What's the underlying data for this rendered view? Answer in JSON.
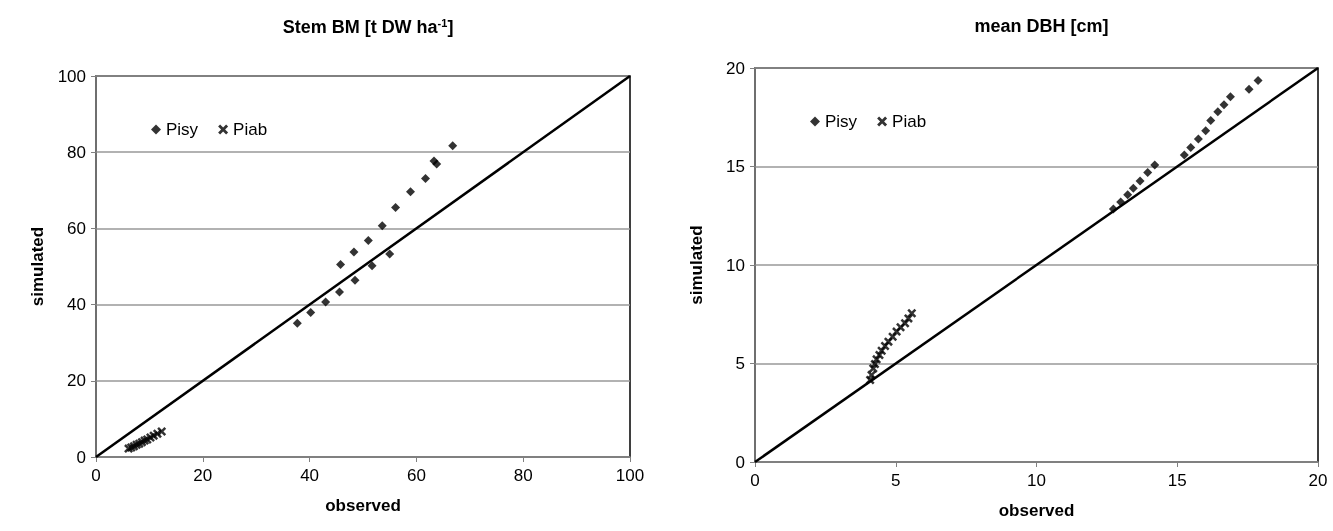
{
  "chart_data": [
    {
      "type": "scatter",
      "title": "Stem BM [t DW ha$^{-1}$]",
      "xlabel": "observed",
      "ylabel": "simulated",
      "xlim": [
        0,
        100
      ],
      "xticks": [
        0,
        20,
        40,
        60,
        80,
        100
      ],
      "ylim": [
        0,
        100
      ],
      "yticks": [
        0,
        20,
        40,
        60,
        80,
        100
      ],
      "grid": "y",
      "legend": "top left",
      "series": [
        {
          "name": "Pisy",
          "color": "#000000",
          "marker": "diamond",
          "x": [
            37.7,
            40.2,
            43.0,
            45.6,
            45.8,
            48.5,
            48.3,
            51.0,
            51.7,
            53.6,
            55.0,
            56.1,
            58.9,
            61.7,
            63.3,
            63.8,
            66.8
          ],
          "values": [
            35.1,
            37.9,
            40.7,
            43.3,
            50.5,
            46.4,
            53.8,
            56.8,
            50.2,
            60.7,
            53.3,
            65.5,
            69.6,
            73.1,
            77.7,
            76.9,
            81.7
          ]
        },
        {
          "name": "Piab",
          "color": "#000000",
          "marker": "cross",
          "x": [
            6.1,
            6.6,
            7.1,
            7.6,
            8.1,
            8.6,
            9.1,
            9.6,
            10.2,
            10.8,
            11.5,
            12.3
          ],
          "values": [
            2.2,
            2.5,
            2.8,
            3.2,
            3.5,
            3.9,
            4.3,
            4.6,
            5.1,
            5.6,
            6.1,
            6.7
          ]
        },
        {
          "type": "line",
          "color": "#000000",
          "marker": "none",
          "line_style": "solid",
          "x": [
            0,
            100
          ],
          "values": [
            0,
            100
          ]
        }
      ]
    },
    {
      "type": "scatter",
      "title": "mean DBH [cm]",
      "xlabel": "observed",
      "ylabel": "simulated",
      "xlim": [
        0,
        20
      ],
      "xticks": [
        0,
        5,
        10,
        15,
        20
      ],
      "ylim": [
        0,
        20
      ],
      "yticks": [
        0,
        5,
        10,
        15,
        20
      ],
      "grid": "y",
      "legend": "top left",
      "series": [
        {
          "name": "Pisy",
          "color": "#000000",
          "marker": "diamond",
          "x": [
            12.73,
            12.99,
            13.24,
            13.44,
            13.68,
            13.95,
            14.2,
            15.25,
            15.48,
            15.75,
            16.01,
            16.19,
            16.44,
            16.66,
            16.89,
            17.55,
            17.87
          ],
          "values": [
            12.84,
            13.2,
            13.57,
            13.9,
            14.26,
            14.7,
            15.08,
            15.58,
            15.97,
            16.4,
            16.82,
            17.33,
            17.78,
            18.14,
            18.54,
            18.92,
            19.36
          ]
        },
        {
          "name": "Piab",
          "color": "#000000",
          "marker": "cross",
          "x": [
            4.09,
            4.14,
            4.2,
            4.26,
            4.32,
            4.42,
            4.5,
            4.62,
            4.74,
            4.89,
            5.03,
            5.17,
            5.33,
            5.45,
            5.57
          ],
          "values": [
            4.16,
            4.42,
            4.75,
            4.97,
            5.21,
            5.43,
            5.65,
            5.89,
            6.11,
            6.36,
            6.62,
            6.84,
            7.04,
            7.29,
            7.55
          ]
        },
        {
          "type": "line",
          "color": "#000000",
          "marker": "none",
          "line_style": "solid",
          "x": [
            0,
            20
          ],
          "values": [
            0,
            20
          ]
        }
      ]
    }
  ]
}
